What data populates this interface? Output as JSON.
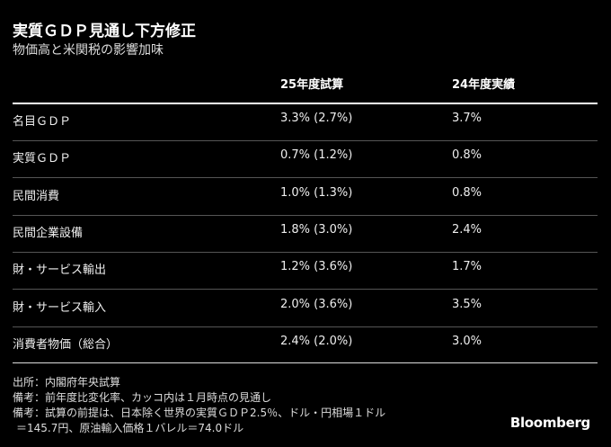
{
  "header": {
    "title": "実質ＧＤＰ見通し下方修正",
    "subtitle": "物価高と米関税の影響加味"
  },
  "table": {
    "columns": [
      "25年度試算",
      "24年度実績"
    ],
    "rows": [
      [
        "名目ＧＤＰ",
        "3.3% (2.7%)",
        "3.7%"
      ],
      [
        "実質ＧＤＰ",
        "0.7% (1.2%)",
        "0.8%"
      ],
      [
        "民間消費",
        "1.0% (1.3%)",
        "0.8%"
      ],
      [
        "民間企業設備",
        "1.8% (3.0%)",
        "2.4%"
      ],
      [
        "財・サービス輸出",
        "1.2% (3.6%)",
        "1.7%"
      ],
      [
        "財・サービス輸入",
        "2.0% (3.6%)",
        "3.5%"
      ],
      [
        "消費者物価（総合）",
        "2.4% (2.0%)",
        "3.0%"
      ]
    ]
  },
  "footer": {
    "notes": [
      "出所：内閣府年央試算",
      "備考：前年度比変化率、カッコ内は１月時点の見通し",
      "備考：試算の前提は、日本除く世界の実質ＧＤＰ2.5％、ドル・円相場１ドル",
      "＝145.7円、原油輸入価格１バレル＝74.0ドル"
    ],
    "brand": "Bloomberg"
  }
}
